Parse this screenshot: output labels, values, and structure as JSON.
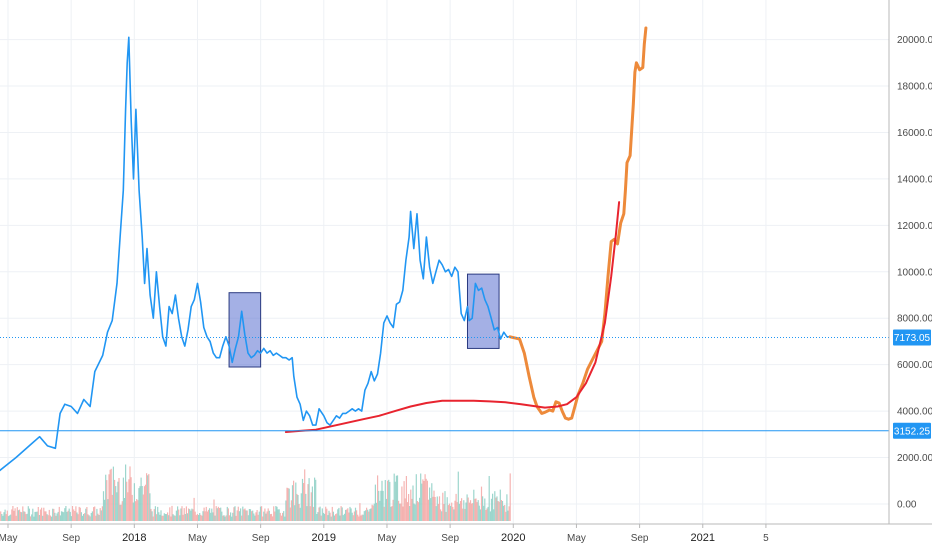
{
  "chart_data": {
    "type": "line",
    "title": "",
    "xlabel": "",
    "ylabel": "",
    "ylim": [
      -600,
      21200
    ],
    "y_ticks": [
      "0.00",
      "2000.00",
      "4000.00",
      "6000.00",
      "8000.00",
      "10000.00",
      "12000.00",
      "14000.00",
      "16000.00",
      "18000.00",
      "20000.00"
    ],
    "x_ticks": [
      {
        "label": "May",
        "year": false
      },
      {
        "label": "Sep",
        "year": false
      },
      {
        "label": "2018",
        "year": true
      },
      {
        "label": "May",
        "year": false
      },
      {
        "label": "Sep",
        "year": false
      },
      {
        "label": "2019",
        "year": true
      },
      {
        "label": "May",
        "year": false
      },
      {
        "label": "Sep",
        "year": false
      },
      {
        "label": "2020",
        "year": true
      },
      {
        "label": "May",
        "year": false
      },
      {
        "label": "Sep",
        "year": false
      },
      {
        "label": "2021",
        "year": true
      },
      {
        "label": "5",
        "year": false
      }
    ],
    "x_tick_months": [
      0,
      4,
      8,
      12,
      16,
      20,
      24,
      28,
      32,
      36,
      40,
      44,
      48
    ],
    "grid": true,
    "price_lines": [
      {
        "value": 7173.05,
        "label": "7173.05",
        "color": "#2196f3",
        "style": "dotted"
      },
      {
        "value": 3152.25,
        "label": "3152.25",
        "color": "#2196f3",
        "style": "solid"
      }
    ],
    "series": [
      {
        "color": "#2196f3",
        "style": "price",
        "points": [
          [
            -0.6,
            1400
          ],
          [
            0.5,
            2000
          ],
          [
            1.0,
            2300
          ],
          [
            1.5,
            2600
          ],
          [
            2.0,
            2900
          ],
          [
            2.5,
            2500
          ],
          [
            3.0,
            2400
          ],
          [
            3.3,
            3900
          ],
          [
            3.6,
            4300
          ],
          [
            4.0,
            4200
          ],
          [
            4.4,
            3900
          ],
          [
            4.8,
            4500
          ],
          [
            5.2,
            4200
          ],
          [
            5.5,
            5700
          ],
          [
            6.0,
            6400
          ],
          [
            6.3,
            7400
          ],
          [
            6.6,
            7900
          ],
          [
            6.9,
            9500
          ],
          [
            7.1,
            11500
          ],
          [
            7.3,
            13500
          ],
          [
            7.45,
            17000
          ],
          [
            7.55,
            19000
          ],
          [
            7.65,
            20100
          ],
          [
            7.8,
            16500
          ],
          [
            7.95,
            14000
          ],
          [
            8.1,
            17000
          ],
          [
            8.3,
            13500
          ],
          [
            8.5,
            11500
          ],
          [
            8.65,
            9500
          ],
          [
            8.8,
            11000
          ],
          [
            9.0,
            9000
          ],
          [
            9.2,
            8000
          ],
          [
            9.4,
            10000
          ],
          [
            9.6,
            8500
          ],
          [
            9.8,
            7200
          ],
          [
            10.0,
            6800
          ],
          [
            10.2,
            8500
          ],
          [
            10.4,
            8200
          ],
          [
            10.6,
            9000
          ],
          [
            10.8,
            8000
          ],
          [
            11.0,
            7200
          ],
          [
            11.2,
            6800
          ],
          [
            11.4,
            7500
          ],
          [
            11.6,
            8500
          ],
          [
            11.8,
            8800
          ],
          [
            12.0,
            9500
          ],
          [
            12.2,
            8700
          ],
          [
            12.4,
            7600
          ],
          [
            12.6,
            7200
          ],
          [
            12.8,
            7000
          ],
          [
            13.0,
            6500
          ],
          [
            13.2,
            6300
          ],
          [
            13.4,
            6300
          ],
          [
            13.6,
            6800
          ],
          [
            13.8,
            7200
          ],
          [
            14.0,
            6800
          ],
          [
            14.2,
            6100
          ],
          [
            14.4,
            6700
          ],
          [
            14.6,
            7200
          ],
          [
            14.8,
            8300
          ],
          [
            15.0,
            7300
          ],
          [
            15.2,
            6500
          ],
          [
            15.4,
            6300
          ],
          [
            15.6,
            6400
          ],
          [
            15.8,
            6600
          ],
          [
            16.0,
            6500
          ],
          [
            16.2,
            6700
          ],
          [
            16.4,
            6500
          ],
          [
            16.6,
            6600
          ],
          [
            16.8,
            6400
          ],
          [
            17.0,
            6500
          ],
          [
            17.2,
            6400
          ],
          [
            17.4,
            6300
          ],
          [
            17.6,
            6300
          ],
          [
            17.8,
            6200
          ],
          [
            18.0,
            6300
          ],
          [
            18.1,
            5500
          ],
          [
            18.3,
            4600
          ],
          [
            18.5,
            4300
          ],
          [
            18.7,
            3600
          ],
          [
            18.9,
            4000
          ],
          [
            19.1,
            3800
          ],
          [
            19.3,
            3400
          ],
          [
            19.5,
            3400
          ],
          [
            19.7,
            4100
          ],
          [
            20.0,
            3800
          ],
          [
            20.2,
            3500
          ],
          [
            20.4,
            3400
          ],
          [
            20.6,
            3600
          ],
          [
            20.8,
            3800
          ],
          [
            21.0,
            3700
          ],
          [
            21.2,
            3900
          ],
          [
            21.4,
            3900
          ],
          [
            21.6,
            4000
          ],
          [
            21.8,
            4100
          ],
          [
            22.0,
            4000
          ],
          [
            22.2,
            4100
          ],
          [
            22.4,
            4000
          ],
          [
            22.6,
            4900
          ],
          [
            22.8,
            5200
          ],
          [
            23.0,
            5700
          ],
          [
            23.2,
            5300
          ],
          [
            23.4,
            5600
          ],
          [
            23.6,
            6500
          ],
          [
            23.8,
            7800
          ],
          [
            24.0,
            8100
          ],
          [
            24.2,
            7800
          ],
          [
            24.4,
            7600
          ],
          [
            24.6,
            8600
          ],
          [
            24.8,
            8700
          ],
          [
            25.0,
            9200
          ],
          [
            25.2,
            10500
          ],
          [
            25.4,
            11500
          ],
          [
            25.5,
            12600
          ],
          [
            25.7,
            11000
          ],
          [
            25.9,
            12500
          ],
          [
            26.1,
            10500
          ],
          [
            26.3,
            9700
          ],
          [
            26.5,
            11500
          ],
          [
            26.7,
            10200
          ],
          [
            26.9,
            9500
          ],
          [
            27.1,
            10000
          ],
          [
            27.3,
            10500
          ],
          [
            27.5,
            10300
          ],
          [
            27.7,
            10000
          ],
          [
            27.9,
            10100
          ],
          [
            28.1,
            9800
          ],
          [
            28.3,
            10200
          ],
          [
            28.5,
            10000
          ],
          [
            28.7,
            8200
          ],
          [
            28.9,
            7900
          ],
          [
            29.1,
            8500
          ],
          [
            29.2,
            7900
          ],
          [
            29.4,
            8000
          ],
          [
            29.6,
            9500
          ],
          [
            29.8,
            9200
          ],
          [
            30.0,
            9300
          ],
          [
            30.2,
            8800
          ],
          [
            30.4,
            8500
          ],
          [
            30.6,
            8000
          ],
          [
            30.8,
            7500
          ],
          [
            31.0,
            7600
          ],
          [
            31.2,
            7100
          ],
          [
            31.4,
            7400
          ],
          [
            31.6,
            7200
          ],
          [
            31.8,
            7200
          ]
        ]
      },
      {
        "color": "#aaaaaa",
        "style": "price-dotted",
        "points": [
          [
            31.8,
            7200
          ],
          [
            32.1,
            7150
          ],
          [
            32.4,
            7150
          ]
        ]
      },
      {
        "color": "#ed8a3b",
        "style": "projection",
        "points": [
          [
            31.8,
            7200
          ],
          [
            32.4,
            7100
          ],
          [
            32.7,
            6500
          ],
          [
            33.0,
            5500
          ],
          [
            33.3,
            4600
          ],
          [
            33.5,
            4200
          ],
          [
            33.8,
            3900
          ],
          [
            34.0,
            3950
          ],
          [
            34.3,
            4050
          ],
          [
            34.5,
            4000
          ],
          [
            34.7,
            4400
          ],
          [
            34.9,
            4350
          ],
          [
            35.1,
            4000
          ],
          [
            35.3,
            3700
          ],
          [
            35.5,
            3650
          ],
          [
            35.7,
            3700
          ],
          [
            35.9,
            4200
          ],
          [
            36.1,
            4700
          ],
          [
            36.4,
            5200
          ],
          [
            36.7,
            5800
          ],
          [
            37.0,
            6200
          ],
          [
            37.3,
            6600
          ],
          [
            37.6,
            7000
          ],
          [
            37.8,
            8200
          ],
          [
            38.0,
            9800
          ],
          [
            38.2,
            11300
          ],
          [
            38.4,
            11400
          ],
          [
            38.6,
            11200
          ],
          [
            38.8,
            12100
          ],
          [
            39.0,
            12500
          ],
          [
            39.1,
            13500
          ],
          [
            39.2,
            14700
          ],
          [
            39.4,
            15000
          ],
          [
            39.6,
            17200
          ],
          [
            39.7,
            18600
          ],
          [
            39.8,
            19000
          ],
          [
            40.0,
            18700
          ],
          [
            40.2,
            18800
          ],
          [
            40.3,
            19800
          ],
          [
            40.4,
            20500
          ]
        ]
      },
      {
        "color": "#e8242f",
        "style": "trend",
        "points": [
          [
            17.6,
            3100
          ],
          [
            18.5,
            3150
          ],
          [
            19.5,
            3200
          ],
          [
            20.5,
            3350
          ],
          [
            21.5,
            3500
          ],
          [
            22.5,
            3650
          ],
          [
            23.5,
            3800
          ],
          [
            24.5,
            4000
          ],
          [
            25.5,
            4200
          ],
          [
            26.5,
            4350
          ],
          [
            27.5,
            4450
          ],
          [
            28.5,
            4450
          ],
          [
            29.5,
            4450
          ],
          [
            30.5,
            4420
          ],
          [
            31.5,
            4380
          ],
          [
            32.5,
            4300
          ],
          [
            33.5,
            4200
          ],
          [
            34.0,
            4150
          ],
          [
            34.8,
            4200
          ],
          [
            35.4,
            4300
          ],
          [
            36.0,
            4600
          ],
          [
            36.6,
            5200
          ],
          [
            37.2,
            6100
          ],
          [
            37.8,
            7800
          ],
          [
            38.2,
            9800
          ],
          [
            38.5,
            11600
          ],
          [
            38.7,
            13000
          ]
        ]
      }
    ],
    "highlight_boxes": [
      {
        "x0": 14.0,
        "x1": 16.0,
        "y0": 5900,
        "y1": 9100
      },
      {
        "x0": 29.1,
        "x1": 31.1,
        "y0": 6700,
        "y1": 9900
      }
    ],
    "volume": {
      "colors": {
        "up": "#8ccfc4",
        "down": "#f3a7a5"
      },
      "x_start": -0.5,
      "x_end": 31.8,
      "max_volume": 3000
    }
  }
}
